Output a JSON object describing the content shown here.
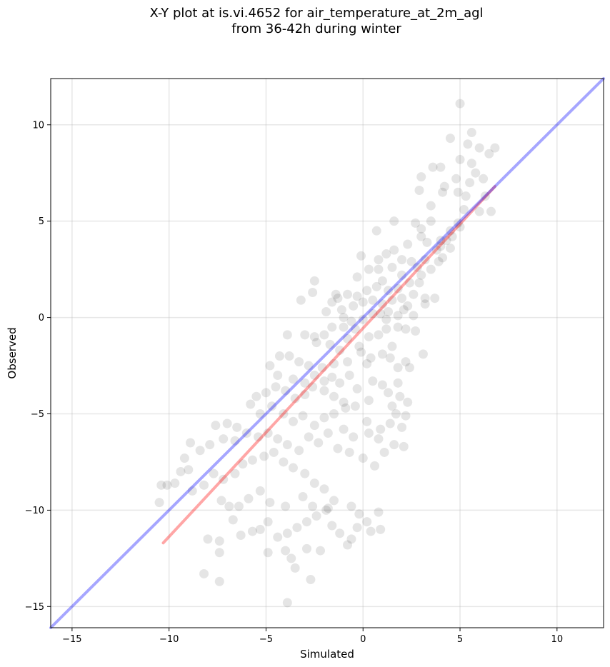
{
  "chart_data": {
    "type": "scatter",
    "title": "X-Y plot at is.vi.4652 for air_temperature_at_2m_agl",
    "subtitle": "from 36-42h during winter",
    "xlabel": "Simulated",
    "ylabel": "Observed",
    "xlim": [
      -16.1,
      12.4
    ],
    "ylim": [
      -16.1,
      12.4
    ],
    "x_ticks": [
      -15,
      -10,
      -5,
      0,
      5,
      10
    ],
    "y_ticks": [
      -15,
      -10,
      -5,
      0,
      5,
      10
    ],
    "x_tick_labels": [
      "−15",
      "−10",
      "−5",
      "0",
      "5",
      "10"
    ],
    "y_tick_labels": [
      "−15",
      "−10",
      "−5",
      "0",
      "5",
      "10"
    ],
    "grid": true,
    "series": [
      {
        "marker": "circle",
        "color": "#000000",
        "opacity": 0.1,
        "points": [
          [
            5.0,
            11.1
          ],
          [
            4.5,
            9.3
          ],
          [
            5.6,
            9.6
          ],
          [
            5.4,
            9.0
          ],
          [
            6.0,
            8.8
          ],
          [
            6.5,
            8.5
          ],
          [
            6.8,
            8.8
          ],
          [
            5.0,
            8.2
          ],
          [
            4.0,
            7.8
          ],
          [
            3.6,
            7.8
          ],
          [
            4.8,
            7.2
          ],
          [
            5.8,
            7.5
          ],
          [
            6.2,
            7.2
          ],
          [
            3.0,
            7.3
          ],
          [
            2.9,
            6.6
          ],
          [
            4.2,
            6.8
          ],
          [
            5.3,
            6.3
          ],
          [
            5.2,
            5.6
          ],
          [
            6.0,
            5.5
          ],
          [
            6.6,
            5.5
          ],
          [
            6.3,
            6.3
          ],
          [
            2.7,
            4.9
          ],
          [
            3.5,
            5.0
          ],
          [
            1.6,
            5.0
          ],
          [
            0.7,
            4.5
          ],
          [
            3.0,
            4.2
          ],
          [
            3.3,
            3.9
          ],
          [
            4.0,
            4.0
          ],
          [
            4.5,
            4.5
          ],
          [
            4.9,
            4.9
          ],
          [
            5.0,
            4.7
          ],
          [
            4.3,
            4.0
          ],
          [
            4.0,
            3.7
          ],
          [
            3.8,
            3.5
          ],
          [
            3.2,
            3.0
          ],
          [
            2.8,
            2.6
          ],
          [
            2.5,
            2.9
          ],
          [
            2.0,
            3.0
          ],
          [
            1.6,
            3.5
          ],
          [
            1.2,
            3.3
          ],
          [
            0.8,
            3.0
          ],
          [
            0.3,
            2.5
          ],
          [
            -0.3,
            2.1
          ],
          [
            -0.1,
            3.2
          ],
          [
            0.8,
            2.5
          ],
          [
            1.5,
            2.6
          ],
          [
            2.0,
            2.2
          ],
          [
            2.4,
            1.8
          ],
          [
            1.8,
            1.5
          ],
          [
            1.3,
            1.4
          ],
          [
            1.0,
            1.9
          ],
          [
            0.7,
            1.6
          ],
          [
            0.2,
            1.4
          ],
          [
            -0.3,
            1.1
          ],
          [
            -0.8,
            1.2
          ],
          [
            -1.3,
            1.0
          ],
          [
            -1.6,
            0.8
          ],
          [
            -1.4,
            1.2
          ],
          [
            -2.5,
            1.9
          ],
          [
            -2.6,
            1.3
          ],
          [
            -3.2,
            0.9
          ],
          [
            -1.9,
            0.3
          ],
          [
            -1.1,
            0.4
          ],
          [
            -0.5,
            0.6
          ],
          [
            0.0,
            0.8
          ],
          [
            0.5,
            0.9
          ],
          [
            1.0,
            0.7
          ],
          [
            1.5,
            0.9
          ],
          [
            2.0,
            1.0
          ],
          [
            2.3,
            0.6
          ],
          [
            3.2,
            1.0
          ],
          [
            3.7,
            1.0
          ],
          [
            2.6,
            0.1
          ],
          [
            1.8,
            0.1
          ],
          [
            1.2,
            -0.1
          ],
          [
            0.5,
            0.2
          ],
          [
            0.0,
            -0.1
          ],
          [
            -0.6,
            -0.2
          ],
          [
            -1.0,
            -0.5
          ],
          [
            -1.6,
            -0.5
          ],
          [
            -2.0,
            -0.9
          ],
          [
            -2.5,
            -1.0
          ],
          [
            -3.0,
            -0.9
          ],
          [
            -3.9,
            -0.9
          ],
          [
            -2.4,
            -1.3
          ],
          [
            -1.7,
            -1.4
          ],
          [
            -1.2,
            -1.7
          ],
          [
            -0.8,
            -1.1
          ],
          [
            -0.2,
            -1.5
          ],
          [
            0.3,
            -1.0
          ],
          [
            0.8,
            -0.9
          ],
          [
            1.2,
            -0.6
          ],
          [
            1.8,
            -0.5
          ],
          [
            2.2,
            -0.6
          ],
          [
            2.7,
            -0.7
          ],
          [
            1.5,
            -1.5
          ],
          [
            1.0,
            -1.9
          ],
          [
            0.4,
            -2.1
          ],
          [
            -0.1,
            -1.8
          ],
          [
            0.2,
            -2.4
          ],
          [
            1.4,
            -2.1
          ],
          [
            1.8,
            -2.6
          ],
          [
            2.2,
            -2.3
          ],
          [
            2.4,
            -2.6
          ],
          [
            3.1,
            -1.9
          ],
          [
            -0.8,
            -2.3
          ],
          [
            -1.5,
            -2.4
          ],
          [
            -2.1,
            -2.6
          ],
          [
            -2.8,
            -2.5
          ],
          [
            -3.3,
            -2.3
          ],
          [
            -3.8,
            -2.0
          ],
          [
            -4.3,
            -2.0
          ],
          [
            -4.8,
            -2.5
          ],
          [
            -4.4,
            -3.0
          ],
          [
            -3.6,
            -3.2
          ],
          [
            -3.0,
            -3.4
          ],
          [
            -2.5,
            -3.0
          ],
          [
            -2.0,
            -3.3
          ],
          [
            -1.6,
            -3.1
          ],
          [
            -1.2,
            -3.4
          ],
          [
            -0.7,
            -3.0
          ],
          [
            -0.3,
            -3.7
          ],
          [
            0.5,
            -3.3
          ],
          [
            1.0,
            -3.5
          ],
          [
            1.3,
            -3.9
          ],
          [
            1.8,
            -3.4
          ],
          [
            1.9,
            -4.1
          ],
          [
            0.3,
            -4.3
          ],
          [
            -0.4,
            -4.6
          ],
          [
            -1.0,
            -4.4
          ],
          [
            -1.5,
            -4.1
          ],
          [
            -2.0,
            -3.8
          ],
          [
            -2.6,
            -3.6
          ],
          [
            -3.0,
            -4.0
          ],
          [
            -3.5,
            -4.2
          ],
          [
            -4.0,
            -3.8
          ],
          [
            -4.5,
            -3.6
          ],
          [
            -5.0,
            -3.9
          ],
          [
            -5.5,
            -4.1
          ],
          [
            -5.8,
            -4.5
          ],
          [
            -5.3,
            -5.0
          ],
          [
            -4.7,
            -4.6
          ],
          [
            -4.1,
            -5.0
          ],
          [
            -3.6,
            -5.4
          ],
          [
            -3.1,
            -5.1
          ],
          [
            -2.5,
            -5.6
          ],
          [
            -2.0,
            -5.2
          ],
          [
            -1.5,
            -5.0
          ],
          [
            -0.9,
            -4.7
          ],
          [
            0.2,
            -5.4
          ],
          [
            0.9,
            -5.8
          ],
          [
            1.4,
            -5.5
          ],
          [
            1.7,
            -5.0
          ],
          [
            2.0,
            -5.7
          ],
          [
            2.1,
            -6.7
          ],
          [
            1.6,
            -6.6
          ],
          [
            0.8,
            -6.3
          ],
          [
            0.6,
            -7.7
          ],
          [
            0.0,
            -7.3
          ],
          [
            -0.7,
            -7.0
          ],
          [
            -1.3,
            -6.8
          ],
          [
            -1.8,
            -6.0
          ],
          [
            -2.3,
            -6.5
          ],
          [
            -2.8,
            -6.2
          ],
          [
            -3.3,
            -6.9
          ],
          [
            -3.9,
            -6.6
          ],
          [
            -4.4,
            -6.3
          ],
          [
            -4.9,
            -6.0
          ],
          [
            -5.4,
            -6.2
          ],
          [
            -6.0,
            -6.0
          ],
          [
            -6.6,
            -6.4
          ],
          [
            -7.2,
            -6.3
          ],
          [
            -7.6,
            -5.6
          ],
          [
            -7.0,
            -5.5
          ],
          [
            -6.5,
            -5.7
          ],
          [
            -7.9,
            -6.6
          ],
          [
            -8.4,
            -6.9
          ],
          [
            -8.9,
            -6.5
          ],
          [
            -9.2,
            -7.3
          ],
          [
            -9.0,
            -7.9
          ],
          [
            -9.4,
            -8.0
          ],
          [
            -9.7,
            -8.6
          ],
          [
            -10.1,
            -8.7
          ],
          [
            -10.4,
            -8.7
          ],
          [
            -10.5,
            -9.6
          ],
          [
            -8.8,
            -9.0
          ],
          [
            -8.2,
            -8.7
          ],
          [
            -7.7,
            -8.1
          ],
          [
            -7.2,
            -8.4
          ],
          [
            -6.6,
            -8.1
          ],
          [
            -6.2,
            -7.6
          ],
          [
            -5.7,
            -7.4
          ],
          [
            -5.1,
            -7.2
          ],
          [
            -4.6,
            -7.0
          ],
          [
            -4.1,
            -7.5
          ],
          [
            -3.6,
            -7.8
          ],
          [
            -3.0,
            -8.1
          ],
          [
            -2.5,
            -8.6
          ],
          [
            -2.0,
            -8.9
          ],
          [
            -1.5,
            -9.5
          ],
          [
            -1.9,
            -10.0
          ],
          [
            -2.4,
            -10.3
          ],
          [
            -2.9,
            -10.6
          ],
          [
            -3.4,
            -10.9
          ],
          [
            -3.9,
            -11.2
          ],
          [
            -4.4,
            -11.4
          ],
          [
            -4.9,
            -10.6
          ],
          [
            -5.3,
            -11.0
          ],
          [
            -5.7,
            -11.1
          ],
          [
            -6.3,
            -11.3
          ],
          [
            -6.7,
            -10.5
          ],
          [
            -6.9,
            -9.8
          ],
          [
            -7.3,
            -9.5
          ],
          [
            -7.4,
            -11.6
          ],
          [
            -7.4,
            -12.2
          ],
          [
            -8.0,
            -11.5
          ],
          [
            -4.9,
            -12.2
          ],
          [
            -4.0,
            -12.1
          ],
          [
            -3.7,
            -12.5
          ],
          [
            -2.9,
            -12.0
          ],
          [
            -2.2,
            -12.1
          ],
          [
            -3.5,
            -13.0
          ],
          [
            -2.7,
            -13.6
          ],
          [
            -3.9,
            -14.8
          ],
          [
            -8.2,
            -13.3
          ],
          [
            -7.4,
            -13.7
          ],
          [
            -0.3,
            -10.9
          ],
          [
            0.2,
            -10.6
          ],
          [
            0.4,
            -11.1
          ],
          [
            0.8,
            -10.1
          ],
          [
            0.9,
            -11.0
          ],
          [
            -0.6,
            -11.5
          ],
          [
            -0.8,
            -11.8
          ],
          [
            -1.2,
            -11.2
          ],
          [
            -1.6,
            -10.8
          ],
          [
            -0.2,
            -10.2
          ],
          [
            -0.6,
            -9.8
          ],
          [
            -1.8,
            -9.9
          ],
          [
            -2.6,
            -9.8
          ],
          [
            -3.1,
            -9.3
          ],
          [
            -4.0,
            -9.8
          ],
          [
            -4.8,
            -9.6
          ],
          [
            -5.3,
            -9.0
          ],
          [
            -5.9,
            -9.4
          ],
          [
            -6.4,
            -9.8
          ],
          [
            1.1,
            -7.0
          ],
          [
            0.3,
            -6.0
          ],
          [
            -0.5,
            -6.2
          ],
          [
            -1.0,
            -5.8
          ],
          [
            2.3,
            -4.4
          ],
          [
            2.2,
            -5.1
          ],
          [
            1.5,
            -4.6
          ],
          [
            3.2,
            0.7
          ],
          [
            2.9,
            1.8
          ],
          [
            3.5,
            2.5
          ],
          [
            4.1,
            3.1
          ],
          [
            4.5,
            3.6
          ],
          [
            3.9,
            2.9
          ],
          [
            4.6,
            4.2
          ],
          [
            2.3,
            3.8
          ],
          [
            3.0,
            4.6
          ],
          [
            3.5,
            5.8
          ],
          [
            4.1,
            6.5
          ],
          [
            4.9,
            6.5
          ],
          [
            5.5,
            7.0
          ],
          [
            5.6,
            8.0
          ],
          [
            -1.0,
            0.0
          ],
          [
            -0.4,
            -0.6
          ],
          [
            0.9,
            0.2
          ],
          [
            1.3,
            0.3
          ],
          [
            2.1,
            0.4
          ],
          [
            2.6,
            1.2
          ],
          [
            3.0,
            2.2
          ]
        ]
      },
      {
        "marker": "line",
        "color": "#ff0000",
        "opacity": 0.35,
        "points": [
          [
            -10.3,
            -11.7
          ],
          [
            6.8,
            6.8
          ]
        ]
      },
      {
        "marker": "line",
        "color": "#0000ff",
        "opacity": 0.35,
        "points": [
          [
            -16.1,
            -16.1
          ],
          [
            12.4,
            12.4
          ]
        ]
      }
    ]
  }
}
